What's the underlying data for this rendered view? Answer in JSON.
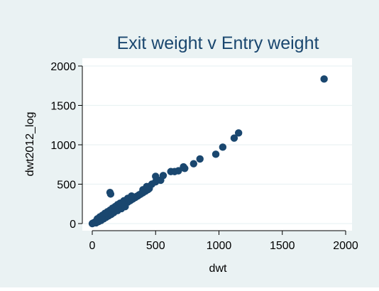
{
  "chart_data": {
    "type": "scatter",
    "title": "Exit weight v Entry weight",
    "xlabel": "dwt",
    "ylabel": "dwt2012_log",
    "xlim": [
      0,
      2000
    ],
    "ylim": [
      0,
      2000
    ],
    "xticks": [
      0,
      500,
      1000,
      1500,
      2000
    ],
    "yticks": [
      0,
      500,
      1000,
      1500,
      2000
    ],
    "grid": true,
    "legend": "none",
    "colors": {
      "outer_background": "#eaf2f3",
      "plot_background": "#ffffff",
      "marker": "#1a476f",
      "grid": "#eaf2f3",
      "text": "#000000",
      "title": "#1a476f"
    },
    "series": [
      {
        "points": [
          [
            0,
            0
          ],
          [
            5,
            5
          ],
          [
            10,
            8
          ],
          [
            15,
            12
          ],
          [
            20,
            18
          ],
          [
            25,
            22
          ],
          [
            30,
            25
          ],
          [
            35,
            32
          ],
          [
            40,
            35
          ],
          [
            45,
            40
          ],
          [
            50,
            45
          ],
          [
            55,
            50
          ],
          [
            60,
            52
          ],
          [
            65,
            60
          ],
          [
            70,
            62
          ],
          [
            75,
            70
          ],
          [
            80,
            75
          ],
          [
            85,
            80
          ],
          [
            90,
            85
          ],
          [
            95,
            88
          ],
          [
            100,
            95
          ],
          [
            105,
            100
          ],
          [
            110,
            105
          ],
          [
            115,
            108
          ],
          [
            120,
            115
          ],
          [
            125,
            118
          ],
          [
            130,
            125
          ],
          [
            135,
            130
          ],
          [
            140,
            135
          ],
          [
            145,
            140
          ],
          [
            150,
            145
          ],
          [
            155,
            150
          ],
          [
            160,
            155
          ],
          [
            165,
            160
          ],
          [
            170,
            165
          ],
          [
            175,
            170
          ],
          [
            180,
            175
          ],
          [
            185,
            178
          ],
          [
            190,
            185
          ],
          [
            195,
            190
          ],
          [
            200,
            195
          ],
          [
            210,
            205
          ],
          [
            220,
            212
          ],
          [
            230,
            225
          ],
          [
            240,
            232
          ],
          [
            250,
            245
          ],
          [
            260,
            252
          ],
          [
            270,
            265
          ],
          [
            280,
            272
          ],
          [
            290,
            285
          ],
          [
            300,
            292
          ],
          [
            310,
            305
          ],
          [
            320,
            312
          ],
          [
            330,
            325
          ],
          [
            340,
            332
          ],
          [
            350,
            345
          ],
          [
            360,
            352
          ],
          [
            370,
            365
          ],
          [
            380,
            372
          ],
          [
            390,
            385
          ],
          [
            400,
            392
          ],
          [
            410,
            405
          ],
          [
            420,
            412
          ],
          [
            430,
            425
          ],
          [
            440,
            432
          ],
          [
            450,
            445
          ],
          [
            30,
            10
          ],
          [
            50,
            25
          ],
          [
            70,
            40
          ],
          [
            90,
            60
          ],
          [
            110,
            80
          ],
          [
            130,
            100
          ],
          [
            150,
            118
          ],
          [
            170,
            140
          ],
          [
            200,
            165
          ],
          [
            230,
            190
          ],
          [
            260,
            215
          ],
          [
            40,
            60
          ],
          [
            60,
            85
          ],
          [
            80,
            105
          ],
          [
            100,
            130
          ],
          [
            120,
            150
          ],
          [
            140,
            170
          ],
          [
            160,
            195
          ],
          [
            180,
            215
          ],
          [
            200,
            240
          ],
          [
            220,
            260
          ],
          [
            250,
            290
          ],
          [
            280,
            320
          ],
          [
            310,
            350
          ],
          [
            140,
            395
          ],
          [
            145,
            375
          ],
          [
            400,
            430
          ],
          [
            430,
            470
          ],
          [
            470,
            500
          ],
          [
            500,
            530
          ],
          [
            510,
            560
          ],
          [
            500,
            600
          ],
          [
            540,
            550
          ],
          [
            560,
            610
          ],
          [
            620,
            660
          ],
          [
            650,
            660
          ],
          [
            680,
            670
          ],
          [
            720,
            720
          ],
          [
            730,
            700
          ],
          [
            800,
            760
          ],
          [
            850,
            820
          ],
          [
            975,
            880
          ],
          [
            1030,
            970
          ],
          [
            1120,
            1085
          ],
          [
            1155,
            1150
          ],
          [
            1830,
            1835
          ]
        ]
      }
    ]
  }
}
